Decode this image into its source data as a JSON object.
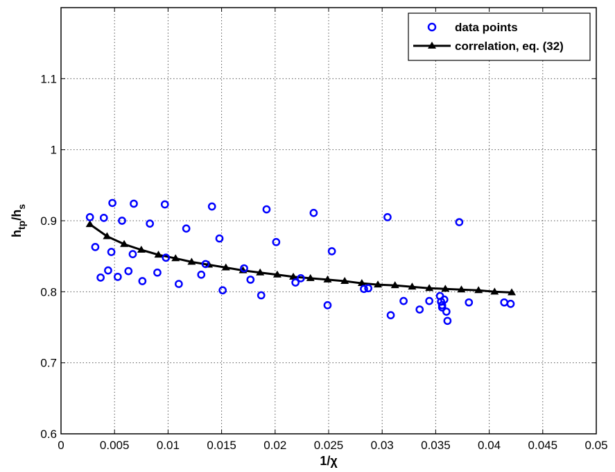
{
  "chart_data": {
    "type": "scatter",
    "title": "",
    "xlabel": "1/χ",
    "ylabel_main": "h",
    "ylabel_sub1": "tp",
    "ylabel_mid": "/h",
    "ylabel_sub2": "s",
    "xlim": [
      0,
      0.05
    ],
    "ylim": [
      0.6,
      1.2
    ],
    "xticks": [
      0,
      0.005,
      0.01,
      0.015,
      0.02,
      0.025,
      0.03,
      0.035,
      0.04,
      0.045,
      0.05
    ],
    "xtick_labels": [
      "0",
      "0.005",
      "0.01",
      "0.015",
      "0.02",
      "0.025",
      "0.03",
      "0.035",
      "0.04",
      "0.045",
      "0.05"
    ],
    "yticks": [
      0.6,
      0.7,
      0.8,
      0.9,
      1.0,
      1.1
    ],
    "ytick_labels": [
      "0.6",
      "0.7",
      "0.8",
      "0.9",
      "1",
      "1.1"
    ],
    "grid": true,
    "legend_position": "top-right",
    "series": [
      {
        "name": "data points",
        "style": "markers",
        "marker": "circle",
        "color": "#0000ff",
        "points": [
          [
            0.0027,
            0.905
          ],
          [
            0.0032,
            0.863
          ],
          [
            0.0037,
            0.82
          ],
          [
            0.004,
            0.904
          ],
          [
            0.0044,
            0.83
          ],
          [
            0.0047,
            0.856
          ],
          [
            0.0048,
            0.925
          ],
          [
            0.0053,
            0.821
          ],
          [
            0.0057,
            0.9
          ],
          [
            0.0063,
            0.829
          ],
          [
            0.0067,
            0.853
          ],
          [
            0.0068,
            0.924
          ],
          [
            0.0076,
            0.815
          ],
          [
            0.0083,
            0.896
          ],
          [
            0.009,
            0.827
          ],
          [
            0.0097,
            0.923
          ],
          [
            0.0098,
            0.848
          ],
          [
            0.011,
            0.811
          ],
          [
            0.0117,
            0.889
          ],
          [
            0.0131,
            0.824
          ],
          [
            0.0135,
            0.839
          ],
          [
            0.0141,
            0.92
          ],
          [
            0.0148,
            0.875
          ],
          [
            0.0151,
            0.802
          ],
          [
            0.0171,
            0.833
          ],
          [
            0.0177,
            0.817
          ],
          [
            0.0187,
            0.795
          ],
          [
            0.0192,
            0.916
          ],
          [
            0.0201,
            0.87
          ],
          [
            0.0219,
            0.813
          ],
          [
            0.0224,
            0.819
          ],
          [
            0.0236,
            0.911
          ],
          [
            0.0249,
            0.781
          ],
          [
            0.0253,
            0.857
          ],
          [
            0.0283,
            0.804
          ],
          [
            0.0287,
            0.805
          ],
          [
            0.0305,
            0.905
          ],
          [
            0.0308,
            0.767
          ],
          [
            0.032,
            0.787
          ],
          [
            0.0335,
            0.775
          ],
          [
            0.0344,
            0.787
          ],
          [
            0.0354,
            0.794
          ],
          [
            0.0355,
            0.786
          ],
          [
            0.0356,
            0.781
          ],
          [
            0.0356,
            0.778
          ],
          [
            0.0358,
            0.789
          ],
          [
            0.036,
            0.772
          ],
          [
            0.0361,
            0.759
          ],
          [
            0.0372,
            0.898
          ],
          [
            0.0381,
            0.785
          ],
          [
            0.0414,
            0.785
          ],
          [
            0.042,
            0.783
          ]
        ]
      },
      {
        "name": "correlation, eq. (32)",
        "style": "line-markers",
        "marker": "triangle",
        "color": "#000000",
        "points": [
          [
            0.0027,
            0.895
          ],
          [
            0.0043,
            0.878
          ],
          [
            0.0059,
            0.867
          ],
          [
            0.0075,
            0.859
          ],
          [
            0.0091,
            0.852
          ],
          [
            0.0107,
            0.847
          ],
          [
            0.0122,
            0.842
          ],
          [
            0.0138,
            0.838
          ],
          [
            0.0154,
            0.834
          ],
          [
            0.017,
            0.83
          ],
          [
            0.0186,
            0.827
          ],
          [
            0.0202,
            0.824
          ],
          [
            0.0217,
            0.821
          ],
          [
            0.0233,
            0.819
          ],
          [
            0.0249,
            0.817
          ],
          [
            0.0265,
            0.815
          ],
          [
            0.0281,
            0.812
          ],
          [
            0.0296,
            0.81
          ],
          [
            0.0312,
            0.809
          ],
          [
            0.0328,
            0.807
          ],
          [
            0.0344,
            0.805
          ],
          [
            0.0359,
            0.804
          ],
          [
            0.0374,
            0.803
          ],
          [
            0.039,
            0.802
          ],
          [
            0.0405,
            0.8
          ],
          [
            0.0421,
            0.799
          ]
        ]
      }
    ]
  }
}
